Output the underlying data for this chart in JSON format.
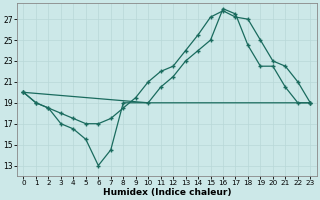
{
  "xlabel": "Humidex (Indice chaleur)",
  "bg_color": "#cce8e8",
  "line_color": "#1a6b5e",
  "grid_color": "#b8d8d8",
  "xlim": [
    -0.5,
    23.5
  ],
  "ylim": [
    12.0,
    28.5
  ],
  "yticks": [
    13,
    15,
    17,
    19,
    21,
    23,
    25,
    27
  ],
  "xticks": [
    0,
    1,
    2,
    3,
    4,
    5,
    6,
    7,
    8,
    9,
    10,
    11,
    12,
    13,
    14,
    15,
    16,
    17,
    18,
    19,
    20,
    21,
    22,
    23
  ],
  "line1_x": [
    0,
    1,
    2,
    3,
    4,
    5,
    6,
    7,
    8,
    23
  ],
  "line1_y": [
    20.0,
    19.0,
    18.5,
    17.0,
    16.5,
    15.5,
    13.0,
    14.5,
    19.0,
    19.0
  ],
  "line2_x": [
    0,
    1,
    2,
    3,
    4,
    5,
    6,
    7,
    8,
    9,
    10,
    11,
    12,
    13,
    14,
    15,
    16,
    17,
    18,
    19,
    20,
    21,
    22,
    23
  ],
  "line2_y": [
    20.0,
    19.0,
    18.5,
    18.0,
    17.5,
    17.0,
    17.0,
    17.5,
    18.5,
    19.5,
    21.0,
    22.0,
    22.5,
    24.0,
    25.5,
    27.2,
    27.8,
    27.2,
    27.0,
    25.0,
    23.0,
    22.5,
    21.0,
    19.0
  ],
  "line3_x": [
    0,
    10,
    11,
    12,
    13,
    14,
    15,
    16,
    17,
    18,
    19,
    20,
    21,
    22,
    23
  ],
  "line3_y": [
    20.0,
    19.0,
    20.5,
    21.5,
    23.0,
    24.0,
    25.0,
    28.0,
    27.5,
    24.5,
    22.5,
    22.5,
    20.5,
    19.0,
    19.0
  ]
}
